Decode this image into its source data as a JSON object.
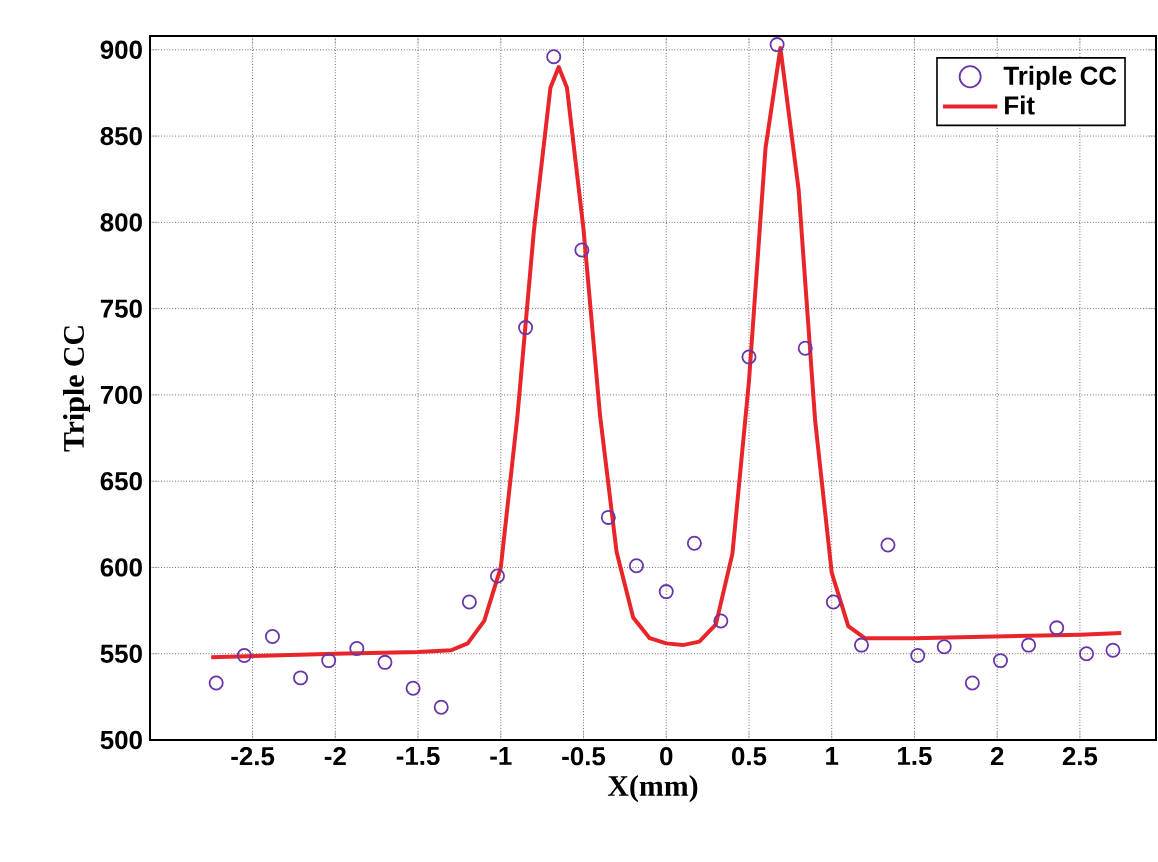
{
  "chart_data": {
    "type": "scatter",
    "xlabel": "X(mm)",
    "ylabel": "Triple CC",
    "xlim": [
      -3.12,
      2.96
    ],
    "ylim": [
      500,
      908
    ],
    "xticks": [
      -2.5,
      -2,
      -1.5,
      -1,
      -0.5,
      0,
      0.5,
      1,
      1.5,
      2,
      2.5
    ],
    "yticks": [
      500,
      550,
      600,
      650,
      700,
      750,
      800,
      850,
      900
    ],
    "grid": true,
    "legend": "top right",
    "series": [
      {
        "name": "Triple CC",
        "marker": "circle",
        "color": "#6a35a8",
        "x": [
          -2.72,
          -2.55,
          -2.38,
          -2.21,
          -2.04,
          -1.87,
          -1.7,
          -1.53,
          -1.36,
          -1.19,
          -1.02,
          -0.85,
          -0.68,
          -0.51,
          -0.35,
          -0.18,
          0,
          0.17,
          0.33,
          0.5,
          0.67,
          0.84,
          1.01,
          1.18,
          1.34,
          1.52,
          1.68,
          1.85,
          2.02,
          2.19,
          2.36,
          2.54,
          2.7
        ],
        "values": [
          533,
          549,
          560,
          536,
          546,
          553,
          545,
          530,
          519,
          580,
          595,
          739,
          896,
          784,
          629,
          601,
          586,
          614,
          569,
          722,
          903,
          727,
          580,
          555,
          613,
          549,
          554,
          533,
          546,
          555,
          565,
          550,
          552
        ]
      },
      {
        "name": "Fit",
        "type": "line",
        "marker": "none",
        "line_style": "solid",
        "color": "#e8262a",
        "x": [
          -2.75,
          -2.0,
          -1.5,
          -1.3,
          -1.2,
          -1.1,
          -1.0,
          -0.9,
          -0.8,
          -0.7,
          -0.65,
          -0.6,
          -0.5,
          -0.4,
          -0.3,
          -0.2,
          -0.1,
          0,
          0.1,
          0.2,
          0.3,
          0.4,
          0.5,
          0.6,
          0.69,
          0.8,
          0.9,
          1.0,
          1.1,
          1.2,
          1.5,
          2.0,
          2.5,
          2.75
        ],
        "values": [
          548,
          550,
          551,
          552,
          556,
          569,
          600,
          687,
          795,
          878,
          890,
          878,
          796,
          688,
          609,
          571,
          559,
          556,
          555,
          557,
          567,
          608,
          708,
          843,
          901,
          819,
          685,
          597,
          566,
          559,
          559,
          560,
          561,
          562
        ]
      }
    ]
  }
}
